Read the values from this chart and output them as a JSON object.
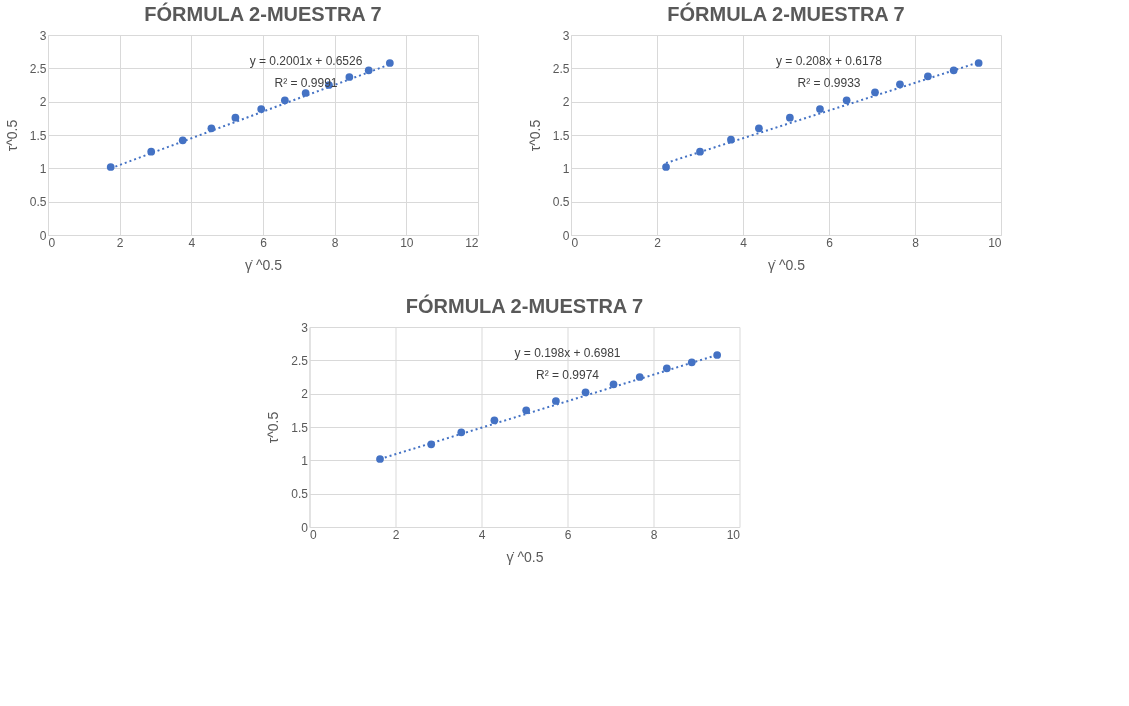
{
  "chart_data": [
    {
      "type": "scatter",
      "title": "FÓRMULA 2-MUESTRA 7",
      "xlabel": "γ̇ ^0.5",
      "ylabel": "τ^0.5",
      "xlim": [
        0,
        12
      ],
      "xticks": [
        0,
        2,
        4,
        6,
        8,
        10,
        12
      ],
      "ylim": [
        0,
        3
      ],
      "yticks": [
        0,
        0.5,
        1,
        1.5,
        2,
        2.5,
        3
      ],
      "grid": true,
      "marker": "circle",
      "series": [
        {
          "type": "scatter",
          "color": "#4472c4",
          "x": [
            1.75,
            2.88,
            3.76,
            4.56,
            5.23,
            5.95,
            6.61,
            7.19,
            7.84,
            8.41,
            8.95,
            9.54
          ],
          "values": [
            1.02,
            1.25,
            1.42,
            1.6,
            1.76,
            1.89,
            2.02,
            2.13,
            2.25,
            2.37,
            2.47,
            2.58
          ]
        },
        {
          "type": "line",
          "color": "#4472c4",
          "line_style": "dotted",
          "marker": "none",
          "x": [
            1.75,
            9.54
          ],
          "values": [
            1.0,
            2.56
          ]
        }
      ],
      "annotations": [
        "y = 0.2001x + 0.6526",
        "R² = 0.9991"
      ]
    },
    {
      "type": "scatter",
      "title": "FÓRMULA 2-MUESTRA 7",
      "xlabel": "γ̇ ^0.5",
      "ylabel": "τ^0.5",
      "xlim": [
        0,
        10
      ],
      "xticks": [
        0,
        2,
        4,
        6,
        8,
        10
      ],
      "ylim": [
        0,
        3
      ],
      "yticks": [
        0,
        0.5,
        1,
        1.5,
        2,
        2.5,
        3
      ],
      "grid": true,
      "marker": "circle",
      "series": [
        {
          "type": "scatter",
          "color": "#4472c4",
          "x": [
            2.21,
            3.0,
            3.72,
            4.37,
            5.09,
            5.79,
            6.41,
            7.07,
            7.65,
            8.3,
            8.9,
            9.48
          ],
          "values": [
            1.02,
            1.25,
            1.43,
            1.6,
            1.76,
            1.89,
            2.02,
            2.14,
            2.26,
            2.38,
            2.47,
            2.58
          ]
        },
        {
          "type": "line",
          "color": "#4472c4",
          "line_style": "dotted",
          "marker": "none",
          "x": [
            2.21,
            9.48
          ],
          "values": [
            1.08,
            2.59
          ]
        }
      ],
      "annotations": [
        "y = 0.208x + 0.6178",
        "R² = 0.9933"
      ]
    },
    {
      "type": "scatter",
      "title": "FÓRMULA 2-MUESTRA 7",
      "xlabel": "γ̇ ^0.5",
      "ylabel": "τ^0.5",
      "xlim": [
        0,
        10
      ],
      "xticks": [
        0,
        2,
        4,
        6,
        8,
        10
      ],
      "ylim": [
        0,
        3
      ],
      "yticks": [
        0,
        0.5,
        1,
        1.5,
        2,
        2.5,
        3
      ],
      "grid": true,
      "marker": "circle",
      "series": [
        {
          "type": "scatter",
          "color": "#4472c4",
          "x": [
            1.64,
            2.83,
            3.53,
            4.3,
            5.04,
            5.73,
            6.42,
            7.07,
            7.68,
            8.31,
            8.89,
            9.48
          ],
          "values": [
            1.02,
            1.24,
            1.42,
            1.6,
            1.75,
            1.89,
            2.02,
            2.14,
            2.25,
            2.38,
            2.47,
            2.58
          ]
        },
        {
          "type": "line",
          "color": "#4472c4",
          "line_style": "dotted",
          "marker": "none",
          "x": [
            1.64,
            9.48
          ],
          "values": [
            1.02,
            2.58
          ]
        }
      ],
      "annotations": [
        "y = 0.198x + 0.6981",
        "R² = 0.9974"
      ]
    }
  ]
}
